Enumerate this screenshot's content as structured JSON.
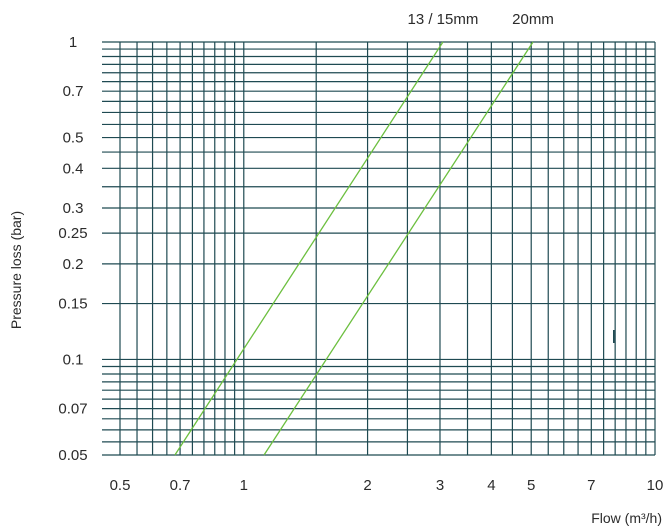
{
  "chart_data": {
    "type": "line",
    "x_scale": "log",
    "y_scale": "log",
    "xlim": [
      0.5,
      10
    ],
    "ylim": [
      0.05,
      1
    ],
    "x_ticks": [
      {
        "value": 0.5,
        "label": "0.5"
      },
      {
        "value": 0.7,
        "label": "0.7"
      },
      {
        "value": 1,
        "label": "1"
      },
      {
        "value": 2,
        "label": "2"
      },
      {
        "value": 3,
        "label": "3"
      },
      {
        "value": 4,
        "label": "4"
      },
      {
        "value": 5,
        "label": "5"
      },
      {
        "value": 7,
        "label": "7"
      },
      {
        "value": 10,
        "label": "10"
      }
    ],
    "y_ticks": [
      {
        "value": 1,
        "label": "1"
      },
      {
        "value": 0.7,
        "label": "0.7"
      },
      {
        "value": 0.5,
        "label": "0.5"
      },
      {
        "value": 0.4,
        "label": "0.4"
      },
      {
        "value": 0.3,
        "label": "0.3"
      },
      {
        "value": 0.25,
        "label": "0.25"
      },
      {
        "value": 0.2,
        "label": "0.2"
      },
      {
        "value": 0.15,
        "label": "0.15"
      },
      {
        "value": 0.1,
        "label": "0.1"
      },
      {
        "value": 0.07,
        "label": "0.07"
      },
      {
        "value": 0.05,
        "label": "0.05"
      }
    ],
    "x_gridlines": [
      0.5,
      0.55,
      0.6,
      0.65,
      0.7,
      0.75,
      0.8,
      0.85,
      0.9,
      0.95,
      1,
      1.5,
      2,
      2.5,
      3,
      3.5,
      4,
      4.5,
      5,
      5.5,
      6,
      6.5,
      7,
      7.5,
      8,
      8.5,
      9,
      9.5,
      10
    ],
    "y_gridlines": [
      0.05,
      0.055,
      0.06,
      0.065,
      0.07,
      0.075,
      0.08,
      0.085,
      0.09,
      0.095,
      0.1,
      0.15,
      0.2,
      0.25,
      0.3,
      0.35,
      0.4,
      0.45,
      0.5,
      0.55,
      0.6,
      0.65,
      0.7,
      0.75,
      0.8,
      0.85,
      0.9,
      0.95,
      1
    ],
    "grid": true,
    "xlabel": "Flow (m³/h)",
    "ylabel": "Pressure loss (bar)",
    "series": [
      {
        "name": "13 / 15mm",
        "color": "#6cbf3f",
        "x": [
          0.68,
          3.05
        ],
        "y": [
          0.05,
          1
        ]
      },
      {
        "name": "20mm",
        "color": "#6cbf3f",
        "x": [
          1.12,
          5.05
        ],
        "y": [
          0.05,
          1
        ]
      }
    ],
    "grid_color": "#1f4a52"
  }
}
